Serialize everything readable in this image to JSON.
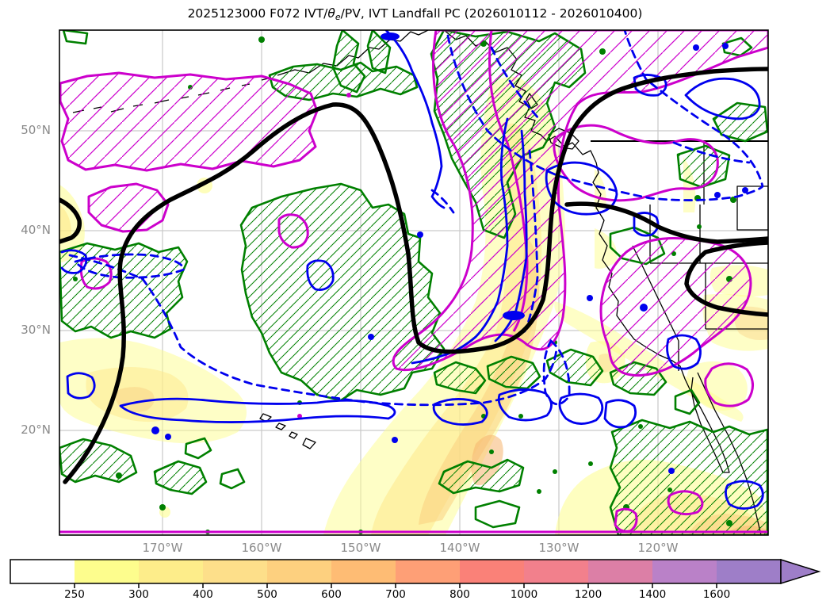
{
  "title": {
    "prefix": "2025123000 F072 IVT/",
    "theta": "θ",
    "theta_sub": "e",
    "suffix": "/PV, IVT Landfall PC (2026010112 - 2026010400)"
  },
  "axes": {
    "lat_ticks": [
      "50°N",
      "40°N",
      "30°N",
      "20°N"
    ],
    "lon_ticks": [
      "170°W",
      "160°W",
      "150°W",
      "140°W",
      "130°W",
      "120°W"
    ]
  },
  "colorbar": {
    "tick_labels": [
      "250",
      "300",
      "400",
      "500",
      "600",
      "700",
      "800",
      "1000",
      "1200",
      "1400",
      "1600"
    ],
    "segment_colors": [
      "#FFFFFF",
      "#FDFD8D",
      "#FDED8A",
      "#FDDF8A",
      "#FDD07F",
      "#FEBC74",
      "#FE9F76",
      "#FA8178",
      "#F2808C",
      "#DC7FA6",
      "#BA81C8",
      "#9E7EC8"
    ],
    "arrow_color": "#9E7EC8",
    "extend": "max"
  },
  "colors": {
    "green": "#008000",
    "magenta": "#CC00CC",
    "blue": "#0000EE",
    "black_contour": "#000000",
    "gridline": "#C9C9C9",
    "tick_label_gray": "#8A8A8A"
  },
  "chart_data": {
    "type": "contour-map",
    "title": "2025123000 F072 IVT/θe/PV, IVT Landfall PC (2026010112 - 2026010400)",
    "region": {
      "lon_tick_labels": [
        "170°W",
        "160°W",
        "150°W",
        "140°W",
        "130°W",
        "120°W"
      ],
      "lat_tick_labels": [
        "50°N",
        "40°N",
        "30°N",
        "20°N"
      ],
      "area": "North-East Pacific, Alaska and western North America incl. Hawaii and Baja California"
    },
    "colorbar_scale": {
      "boundary_values": [
        250,
        300,
        400,
        500,
        600,
        700,
        800,
        1000,
        1200,
        1400,
        1600
      ],
      "segment_colors": [
        "#FFFFFF",
        "#FDFD8D",
        "#FDED8A",
        "#FDDF8A",
        "#FDD07F",
        "#FEBC74",
        "#FE9F76",
        "#FA8178",
        "#F2808C",
        "#DC7FA6",
        "#BA81C8",
        "#9E7EC8"
      ],
      "extend": "max"
    },
    "overlays": [
      {
        "name": "IVT magnitude",
        "style": "filled yellow-orange shading, plume from British Columbia coast to central Pacific, second plume near Baja California and bottom-right corner"
      },
      {
        "name": "green contours",
        "style": "solid green outlines with green diagonal hatching, many scattered regions"
      },
      {
        "name": "magenta contours",
        "style": "solid magenta outlines with magenta diagonal hatching, large region over NE Pacific / Pacific Northwest and top-left ellipse"
      },
      {
        "name": "blue contours",
        "style": "solid and dashed blue lines"
      },
      {
        "name": "PV contour",
        "style": "single very thick black line looping over the central Pacific and along the northern / eastern edges"
      }
    ],
    "grid": true,
    "legend_position": "none"
  }
}
